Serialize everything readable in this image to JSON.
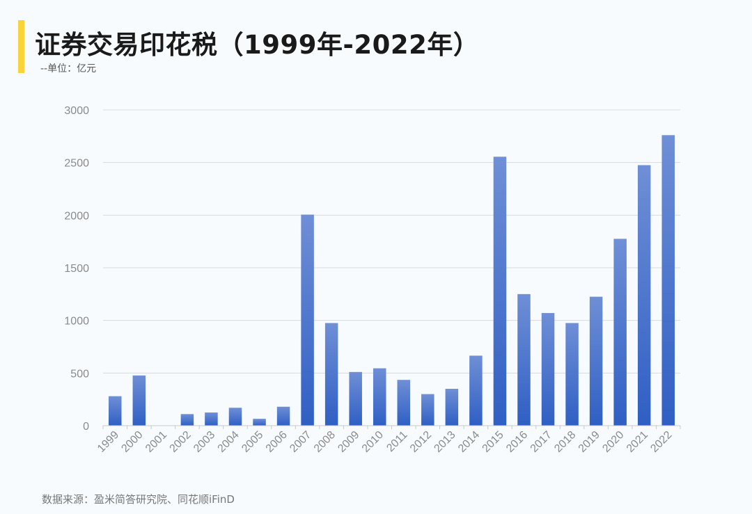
{
  "header": {
    "title": "证券交易印花税（1999年-2022年）",
    "unit_note": "--单位：亿元"
  },
  "footer": {
    "source": "数据来源：盈米简答研究院、同花顺iFinD"
  },
  "colors": {
    "bar_top": "#6f8fd6",
    "bar_bottom": "#2f5fc4",
    "grid": "#d9d9d9",
    "accent": "#f8d33a"
  },
  "chart_data": {
    "type": "bar",
    "title": "证券交易印花税（1999年-2022年）",
    "ylabel": "",
    "xlabel": "",
    "unit": "亿元",
    "ylim": [
      0,
      3000
    ],
    "yticks": [
      0,
      500,
      1000,
      1500,
      2000,
      2500,
      3000
    ],
    "grid": true,
    "legend": "none",
    "categories": [
      "1999",
      "2000",
      "2001",
      "2002",
      "2003",
      "2004",
      "2005",
      "2006",
      "2007",
      "2008",
      "2009",
      "2010",
      "2011",
      "2012",
      "2013",
      "2014",
      "2015",
      "2016",
      "2017",
      "2018",
      "2019",
      "2020",
      "2021",
      "2022"
    ],
    "values": [
      280,
      477,
      0,
      110,
      125,
      170,
      65,
      180,
      2005,
      975,
      510,
      545,
      435,
      300,
      350,
      665,
      2555,
      1250,
      1070,
      975,
      1225,
      1775,
      2475,
      2760
    ]
  }
}
